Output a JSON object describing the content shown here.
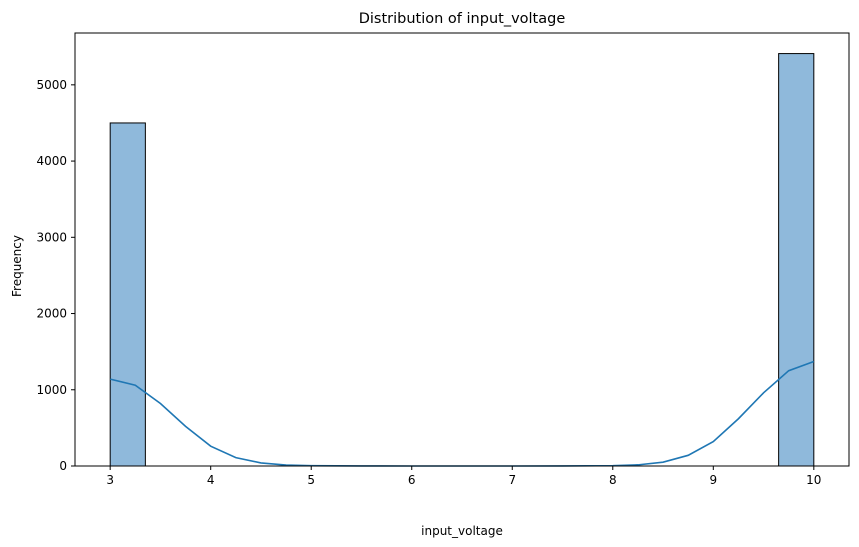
{
  "chart_data": {
    "type": "bar",
    "subtype": "histogram-with-kde",
    "title": "Distribution of input_voltage",
    "xlabel": "input_voltage",
    "ylabel": "Frequency",
    "xlim": [
      2.65,
      10.35
    ],
    "ylim": [
      0,
      5680
    ],
    "xticks": [
      3,
      4,
      5,
      6,
      7,
      8,
      9,
      10
    ],
    "yticks": [
      0,
      1000,
      2000,
      3000,
      4000,
      5000
    ],
    "bins": [
      {
        "x0": 3.0,
        "x1": 3.35,
        "count": 4500
      },
      {
        "x0": 9.65,
        "x1": 10.0,
        "count": 5410
      }
    ],
    "kde": {
      "x": [
        3.0,
        3.25,
        3.5,
        3.75,
        4.0,
        4.25,
        4.5,
        4.75,
        5.0,
        5.5,
        6.0,
        6.5,
        7.0,
        7.5,
        8.0,
        8.25,
        8.5,
        8.75,
        9.0,
        9.25,
        9.5,
        9.75,
        10.0
      ],
      "y": [
        1140,
        1060,
        820,
        520,
        260,
        110,
        40,
        12,
        4,
        1,
        0,
        0,
        0,
        1,
        5,
        15,
        50,
        140,
        320,
        620,
        960,
        1250,
        1370
      ]
    },
    "bar_color": "#8fb9db",
    "bar_edge_color": "#000000",
    "kde_color": "#1f77b4",
    "grid": false,
    "legend": false
  }
}
